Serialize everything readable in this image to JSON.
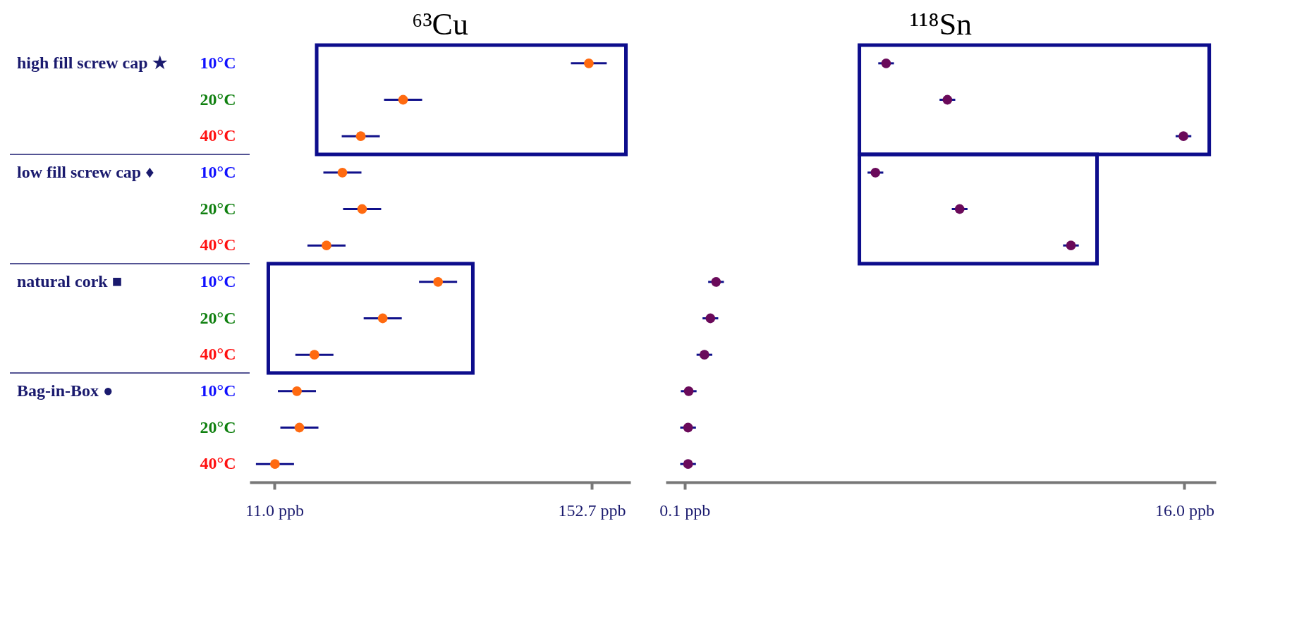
{
  "chart_data": [
    {
      "type": "scatter",
      "title": "⁶³Cu",
      "orientation": "horizontal",
      "marker": "circle",
      "color": "#ff6a10",
      "categories": [
        "10°C",
        "20°C",
        "40°C",
        "10°C",
        "20°C",
        "40°C",
        "10°C",
        "20°C",
        "40°C",
        "10°C",
        "20°C",
        "40°C"
      ],
      "values": [
        151.4,
        68.5,
        49.6,
        41.4,
        50.2,
        34.3,
        84.1,
        59.4,
        28.9,
        21.1,
        22.2,
        11.3
      ],
      "errors": [
        8.0,
        8.5,
        8.5,
        8.5,
        8.5,
        8.5,
        8.5,
        8.5,
        8.5,
        8.5,
        8.5,
        8.5
      ],
      "xlim": [
        0,
        170
      ],
      "xticks": [
        {
          "value": 11.0,
          "label": "11.0 ppb"
        },
        {
          "value": 152.7,
          "label": "152.7 ppb"
        }
      ],
      "annotations": [
        "high fill screw cap ★",
        "low fill screw cap ♦",
        "natural cork ■",
        "Bag-in-Box ●"
      ]
    },
    {
      "type": "scatter",
      "title": "¹¹⁸Sn",
      "orientation": "horizontal",
      "marker": "circle",
      "color": "#6a0a5a",
      "categories": [
        null,
        null,
        null,
        null,
        null,
        null,
        null,
        null,
        null,
        null,
        null,
        null
      ],
      "values": [
        6.51,
        8.46,
        15.97,
        6.17,
        8.85,
        12.39,
        1.1,
        0.92,
        0.73,
        0.23,
        0.21,
        0.21
      ],
      "errors": [
        0.25,
        0.25,
        0.25,
        0.25,
        0.25,
        0.25,
        0.25,
        0.25,
        0.25,
        0.25,
        0.25,
        0.25
      ],
      "xlim": [
        -0.5,
        17
      ],
      "xticks": [
        {
          "value": 0.1,
          "label": "0.1 ppb"
        },
        {
          "value": 16.0,
          "label": "16.0 ppb"
        }
      ]
    }
  ]
}
